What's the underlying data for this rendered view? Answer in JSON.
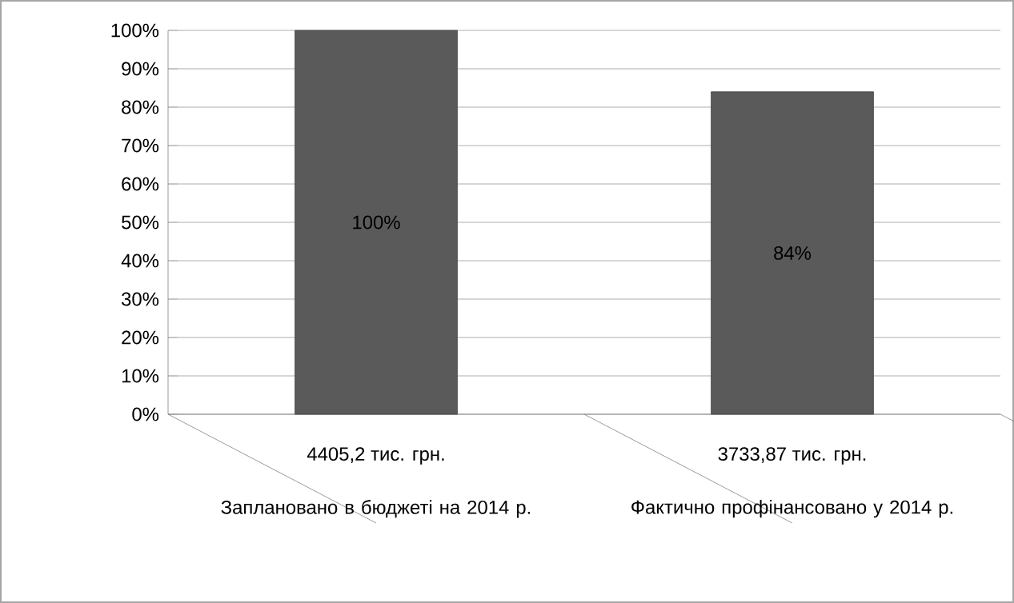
{
  "chart_data": {
    "type": "bar",
    "categories": [
      "Заплановано в бюджеті на 2014 р.",
      "Фактично профінансовано у 2014 р."
    ],
    "values": [
      100,
      84
    ],
    "value_labels": [
      "100%",
      "84%"
    ],
    "color": "#5a5a5a",
    "ylim": [
      0,
      100
    ],
    "yticks": [
      {
        "value": 0,
        "label": "0%"
      },
      {
        "value": 10,
        "label": "10%"
      },
      {
        "value": 20,
        "label": "20%"
      },
      {
        "value": 30,
        "label": "30%"
      },
      {
        "value": 40,
        "label": "40%"
      },
      {
        "value": 50,
        "label": "50%"
      },
      {
        "value": 60,
        "label": "60%"
      },
      {
        "value": 70,
        "label": "70%"
      },
      {
        "value": 80,
        "label": "80%"
      },
      {
        "value": 90,
        "label": "90%"
      },
      {
        "value": 100,
        "label": "100%"
      }
    ],
    "grid": "y",
    "annotations": [
      "4405,2 тис. грн.",
      "3733,87 тис. грн."
    ]
  }
}
